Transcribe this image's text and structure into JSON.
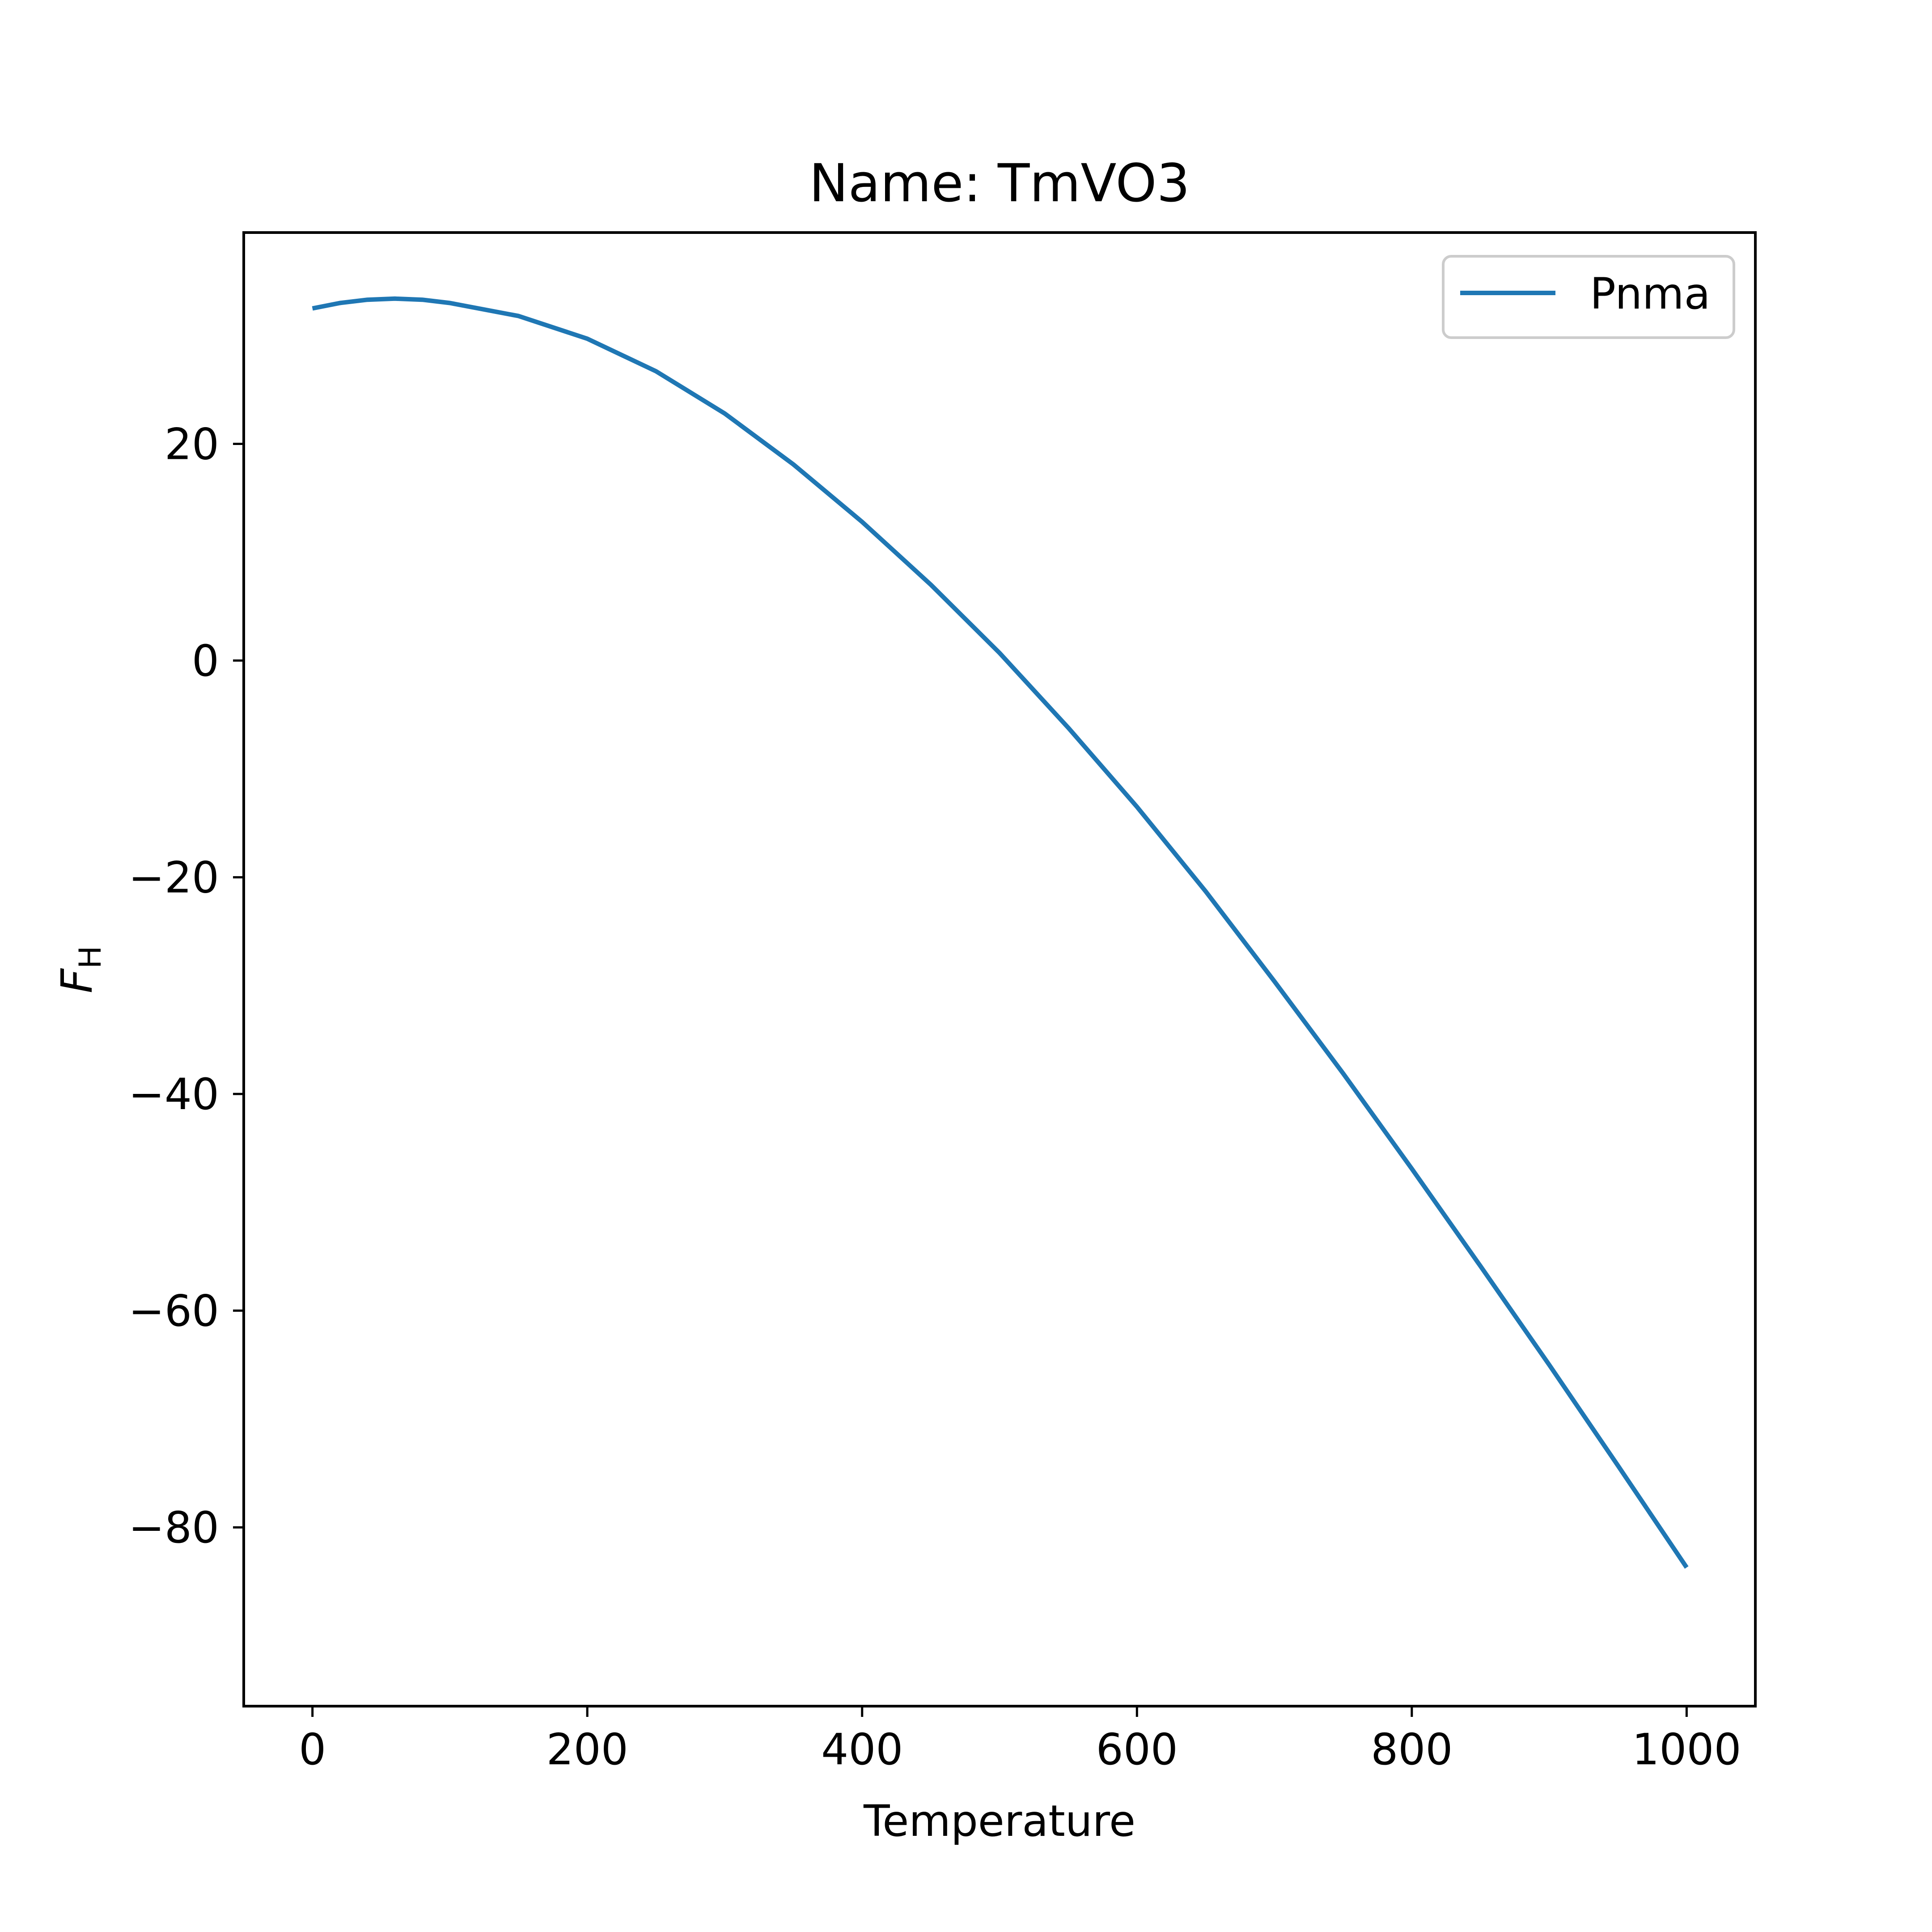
{
  "chart_data": {
    "type": "line",
    "title": "Name: TmVO3",
    "xlabel": "Temperature",
    "ylabel_main": "F",
    "ylabel_sub": "H",
    "xlim": [
      -50,
      1050
    ],
    "ylim": [
      -96.5,
      39.5
    ],
    "xticks": [
      0,
      200,
      400,
      600,
      800,
      1000
    ],
    "yticks": [
      -80,
      -60,
      -40,
      -20,
      0,
      20
    ],
    "grid": false,
    "legend_position": "top-right",
    "series": [
      {
        "name": "Pnma",
        "color": "#1f77b4",
        "x": [
          0,
          20,
          40,
          60,
          80,
          100,
          150,
          200,
          250,
          300,
          350,
          400,
          450,
          500,
          550,
          600,
          650,
          700,
          750,
          800,
          850,
          900,
          950,
          1000
        ],
        "y": [
          32.5,
          33.0,
          33.3,
          33.4,
          33.3,
          33.0,
          31.8,
          29.7,
          26.7,
          22.8,
          18.1,
          12.8,
          7.0,
          0.7,
          -6.2,
          -13.5,
          -21.3,
          -29.6,
          -38.1,
          -46.9,
          -55.9,
          -65.0,
          -74.3,
          -83.7
        ]
      }
    ]
  }
}
